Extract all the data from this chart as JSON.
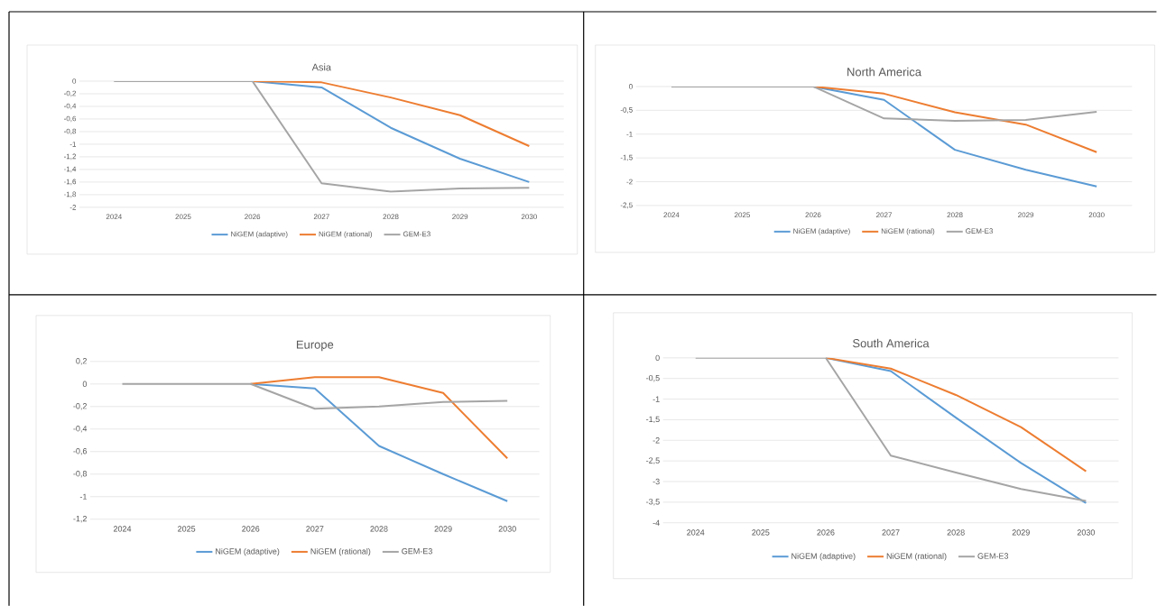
{
  "chart_data": [
    {
      "type": "line",
      "title": "Asia",
      "categories": [
        "2024",
        "2025",
        "2026",
        "2027",
        "2028",
        "2029",
        "2030"
      ],
      "series": [
        {
          "name": "NiGEM (adaptive)",
          "color": "#5b9bd5",
          "values": [
            null,
            null,
            0,
            -0.1,
            -0.74,
            -1.23,
            -1.6
          ]
        },
        {
          "name": "NiGEM (rational)",
          "color": "#ed7d31",
          "values": [
            null,
            null,
            0,
            -0.02,
            -0.26,
            -0.54,
            -1.03
          ]
        },
        {
          "name": "GEM-E3",
          "color": "#a5a5a5",
          "values": [
            0,
            0,
            0,
            -1.62,
            -1.75,
            -1.7,
            -1.69
          ]
        }
      ],
      "ylim": [
        -2,
        0
      ],
      "yticks": [
        0,
        {
          "value": -0.2,
          "label": "-0,2"
        },
        {
          "value": -0.4,
          "label": "-0,4"
        },
        {
          "value": -0.6,
          "label": "-0,6"
        },
        {
          "value": -0.8,
          "label": "-0,8"
        },
        -1,
        {
          "value": -1.2,
          "label": "-1,2"
        },
        {
          "value": -1.4,
          "label": "-1,4"
        },
        {
          "value": -1.6,
          "label": "-1,6"
        },
        {
          "value": -1.8,
          "label": "-1,8"
        },
        -2
      ],
      "grid": "y",
      "legend": "bottom",
      "line_style": "solid"
    },
    {
      "type": "line",
      "title": "North America",
      "categories": [
        "2024",
        "2025",
        "2026",
        "2027",
        "2028",
        "2029",
        "2030"
      ],
      "series": [
        {
          "name": "NiGEM (adaptive)",
          "color": "#5b9bd5",
          "values": [
            null,
            null,
            0,
            -0.28,
            -1.33,
            -1.75,
            -2.1
          ]
        },
        {
          "name": "NiGEM (rational)",
          "color": "#ed7d31",
          "values": [
            null,
            null,
            0,
            -0.15,
            -0.54,
            -0.8,
            -1.38
          ]
        },
        {
          "name": "GEM-E3",
          "color": "#a5a5a5",
          "values": [
            0,
            0,
            0,
            -0.67,
            -0.72,
            -0.7,
            -0.53
          ]
        }
      ],
      "ylim": [
        -2.5,
        0
      ],
      "yticks": [
        0,
        {
          "value": -0.5,
          "label": "-0,5"
        },
        -1,
        {
          "value": -1.5,
          "label": "-1,5"
        },
        -2,
        {
          "value": -2.5,
          "label": "-2,5"
        }
      ],
      "grid": "y",
      "legend": "bottom",
      "line_style": "solid"
    },
    {
      "type": "line",
      "title": "Europe",
      "categories": [
        "2024",
        "2025",
        "2026",
        "2027",
        "2028",
        "2029",
        "2030"
      ],
      "series": [
        {
          "name": "NiGEM (adaptive)",
          "color": "#5b9bd5",
          "values": [
            null,
            null,
            0,
            -0.04,
            -0.55,
            -0.8,
            -1.04
          ]
        },
        {
          "name": "NiGEM (rational)",
          "color": "#ed7d31",
          "values": [
            null,
            null,
            0,
            0.06,
            0.06,
            -0.08,
            -0.66
          ]
        },
        {
          "name": "GEM-E3",
          "color": "#a5a5a5",
          "values": [
            0,
            0,
            0,
            -0.22,
            -0.2,
            -0.16,
            -0.15
          ]
        }
      ],
      "ylim": [
        -1.2,
        0.2
      ],
      "yticks": [
        {
          "value": 0.2,
          "label": "0,2"
        },
        0,
        {
          "value": -0.2,
          "label": "-0,2"
        },
        {
          "value": -0.4,
          "label": "-0,4"
        },
        {
          "value": -0.6,
          "label": "-0,6"
        },
        {
          "value": -0.8,
          "label": "-0,8"
        },
        -1,
        {
          "value": -1.2,
          "label": "-1,2"
        }
      ],
      "grid": "y",
      "legend": "bottom",
      "line_style": "solid"
    },
    {
      "type": "line",
      "title": "South America",
      "categories": [
        "2024",
        "2025",
        "2026",
        "2027",
        "2028",
        "2029",
        "2030"
      ],
      "series": [
        {
          "name": "NiGEM (adaptive)",
          "color": "#5b9bd5",
          "values": [
            null,
            null,
            0,
            -0.32,
            -1.45,
            -2.55,
            -3.52
          ]
        },
        {
          "name": "NiGEM (rational)",
          "color": "#ed7d31",
          "values": [
            null,
            null,
            0,
            -0.26,
            -0.9,
            -1.68,
            -2.75
          ]
        },
        {
          "name": "GEM-E3",
          "color": "#a5a5a5",
          "values": [
            0,
            0,
            0,
            -2.37,
            -2.78,
            -3.18,
            -3.47
          ]
        }
      ],
      "ylim": [
        -4,
        0
      ],
      "yticks": [
        0,
        {
          "value": -0.5,
          "label": "-0,5"
        },
        -1,
        {
          "value": -1.5,
          "label": "-1,5"
        },
        -2,
        {
          "value": -2.5,
          "label": "-2,5"
        },
        -3,
        {
          "value": -3.5,
          "label": "-3,5"
        },
        -4
      ],
      "grid": "y",
      "legend": "bottom",
      "line_style": "solid"
    }
  ]
}
